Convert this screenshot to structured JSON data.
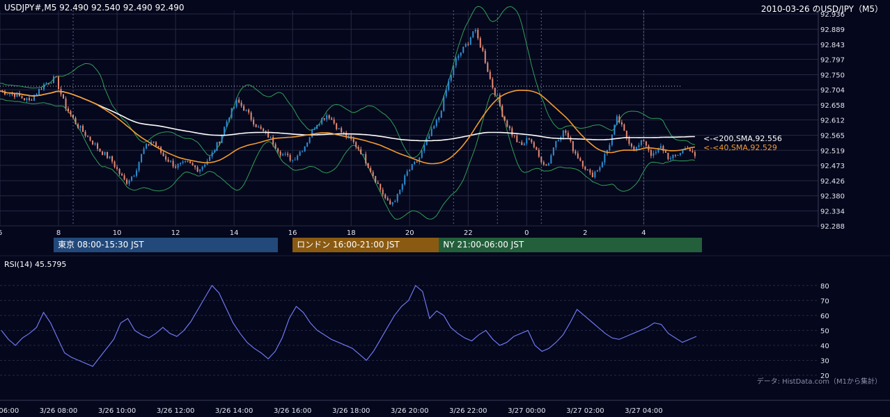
{
  "header": {
    "symbol_info": "USDJPY#,M5 92.490 92.540 92.490 92.490",
    "title_right": "2010-03-26 のUSD/JPY（M5）"
  },
  "sessions": [
    {
      "label": "東京 08:00-15:30 JST",
      "color": "#22497a",
      "start_hour": 8.0,
      "end_hour": 15.5
    },
    {
      "label": "ロンドン 16:00-21:00 JST",
      "color": "#8a5a12",
      "start_hour": 16.0,
      "end_hour": 21.0
    },
    {
      "label": "NY 21:00-06:00 JST",
      "color": "#235f3b",
      "start_hour": 21.0,
      "end_hour": 30.0
    }
  ],
  "indicators": {
    "sma200_label": "<-<200,SMA,92.556",
    "sma40_label": "<-<40,SMA,92.529",
    "rsi_label": "RSI(14) 45.5795"
  },
  "source_note": "データ: HistData.com（M1から集計）",
  "colors": {
    "background": "#05071c",
    "candle_up": "#2e8fd4",
    "candle_down": "#e58a73",
    "sma200": "#ffffff",
    "sma40": "#f39c30",
    "bollinger": "#2fa05a",
    "rsi": "#6f78f0",
    "grid": "#262a44",
    "axis_text": "#e6e6f0"
  },
  "chart_data": [
    {
      "type": "candlestick",
      "symbol": "USDJPY",
      "timeframe": "M5",
      "ylim": [
        92.288,
        92.936
      ],
      "y_ticks": [
        "92.936",
        "92.889",
        "92.843",
        "92.797",
        "92.750",
        "92.704",
        "92.658",
        "92.612",
        "92.565",
        "92.519",
        "92.473",
        "92.426",
        "92.380",
        "92.334",
        "92.288"
      ],
      "x_ticks": [
        "6",
        "8",
        "10",
        "12",
        "14",
        "16",
        "18",
        "20",
        "22",
        "0",
        "2",
        "4"
      ],
      "x_range_hours": [
        6.0,
        29.8
      ],
      "reference_level": 92.715,
      "session_markers_hours": [
        8.5,
        21.5,
        23.0,
        24.5,
        28.0
      ],
      "close_path": [
        [
          6.0,
          92.7
        ],
        [
          6.5,
          92.69
        ],
        [
          7.0,
          92.67
        ],
        [
          7.5,
          92.72
        ],
        [
          7.9,
          92.74
        ],
        [
          8.2,
          92.66
        ],
        [
          8.6,
          92.6
        ],
        [
          9.0,
          92.56
        ],
        [
          9.4,
          92.52
        ],
        [
          9.8,
          92.49
        ],
        [
          10.0,
          92.46
        ],
        [
          10.3,
          92.42
        ],
        [
          10.6,
          92.45
        ],
        [
          10.9,
          92.52
        ],
        [
          11.2,
          92.55
        ],
        [
          11.6,
          92.5
        ],
        [
          12.0,
          92.47
        ],
        [
          12.4,
          92.48
        ],
        [
          12.8,
          92.46
        ],
        [
          13.2,
          92.5
        ],
        [
          13.5,
          92.55
        ],
        [
          13.8,
          92.62
        ],
        [
          14.1,
          92.67
        ],
        [
          14.4,
          92.64
        ],
        [
          14.8,
          92.59
        ],
        [
          15.2,
          92.56
        ],
        [
          15.6,
          92.51
        ],
        [
          16.0,
          92.49
        ],
        [
          16.4,
          92.53
        ],
        [
          16.8,
          92.6
        ],
        [
          17.2,
          92.63
        ],
        [
          17.6,
          92.58
        ],
        [
          18.0,
          92.55
        ],
        [
          18.3,
          92.52
        ],
        [
          18.6,
          92.47
        ],
        [
          19.0,
          92.4
        ],
        [
          19.3,
          92.35
        ],
        [
          19.6,
          92.38
        ],
        [
          19.9,
          92.45
        ],
        [
          20.3,
          92.49
        ],
        [
          20.6,
          92.55
        ],
        [
          21.0,
          92.62
        ],
        [
          21.3,
          92.72
        ],
        [
          21.6,
          92.8
        ],
        [
          22.0,
          92.85
        ],
        [
          22.2,
          92.89
        ],
        [
          22.5,
          92.82
        ],
        [
          22.8,
          92.72
        ],
        [
          23.0,
          92.68
        ],
        [
          23.2,
          92.62
        ],
        [
          23.5,
          92.57
        ],
        [
          23.8,
          92.53
        ],
        [
          24.1,
          92.56
        ],
        [
          24.4,
          92.5
        ],
        [
          24.7,
          92.47
        ],
        [
          25.0,
          92.55
        ],
        [
          25.3,
          92.58
        ],
        [
          25.6,
          92.52
        ],
        [
          25.9,
          92.48
        ],
        [
          26.2,
          92.44
        ],
        [
          26.5,
          92.47
        ],
        [
          26.8,
          92.53
        ],
        [
          27.1,
          92.62
        ],
        [
          27.4,
          92.56
        ],
        [
          27.7,
          92.52
        ],
        [
          28.0,
          92.55
        ],
        [
          28.3,
          92.5
        ],
        [
          28.6,
          92.53
        ],
        [
          28.9,
          92.49
        ],
        [
          29.2,
          92.51
        ],
        [
          29.5,
          92.53
        ],
        [
          29.8,
          92.49
        ]
      ]
    },
    {
      "type": "line",
      "name": "RSI(14)",
      "ylim": [
        20,
        85
      ],
      "y_ticks": [
        80,
        70,
        60,
        50,
        40,
        30,
        20
      ],
      "x_ticks": [
        "3/26 06:00",
        "3/26 08:00",
        "3/26 10:00",
        "3/26 12:00",
        "3/26 14:00",
        "3/26 16:00",
        "3/26 18:00",
        "3/26 20:00",
        "3/26 22:00",
        "3/27 00:00",
        "3/27 02:00",
        "3/27 04:00"
      ],
      "values": [
        50,
        44,
        40,
        45,
        48,
        52,
        62,
        55,
        45,
        35,
        32,
        30,
        28,
        26,
        32,
        38,
        44,
        55,
        58,
        50,
        47,
        45,
        48,
        52,
        48,
        46,
        50,
        56,
        64,
        72,
        80,
        75,
        65,
        55,
        48,
        42,
        38,
        35,
        31,
        36,
        45,
        58,
        66,
        62,
        55,
        50,
        47,
        44,
        42,
        40,
        38,
        34,
        30,
        36,
        44,
        52,
        60,
        66,
        70,
        80,
        76,
        58,
        63,
        60,
        52,
        48,
        45,
        43,
        47,
        50,
        44,
        40,
        42,
        46,
        48,
        50,
        40,
        36,
        38,
        42,
        47,
        55,
        64,
        60,
        56,
        52,
        48,
        45,
        44,
        46,
        48,
        50,
        52,
        55,
        54,
        48,
        45,
        42,
        44,
        46
      ]
    }
  ]
}
